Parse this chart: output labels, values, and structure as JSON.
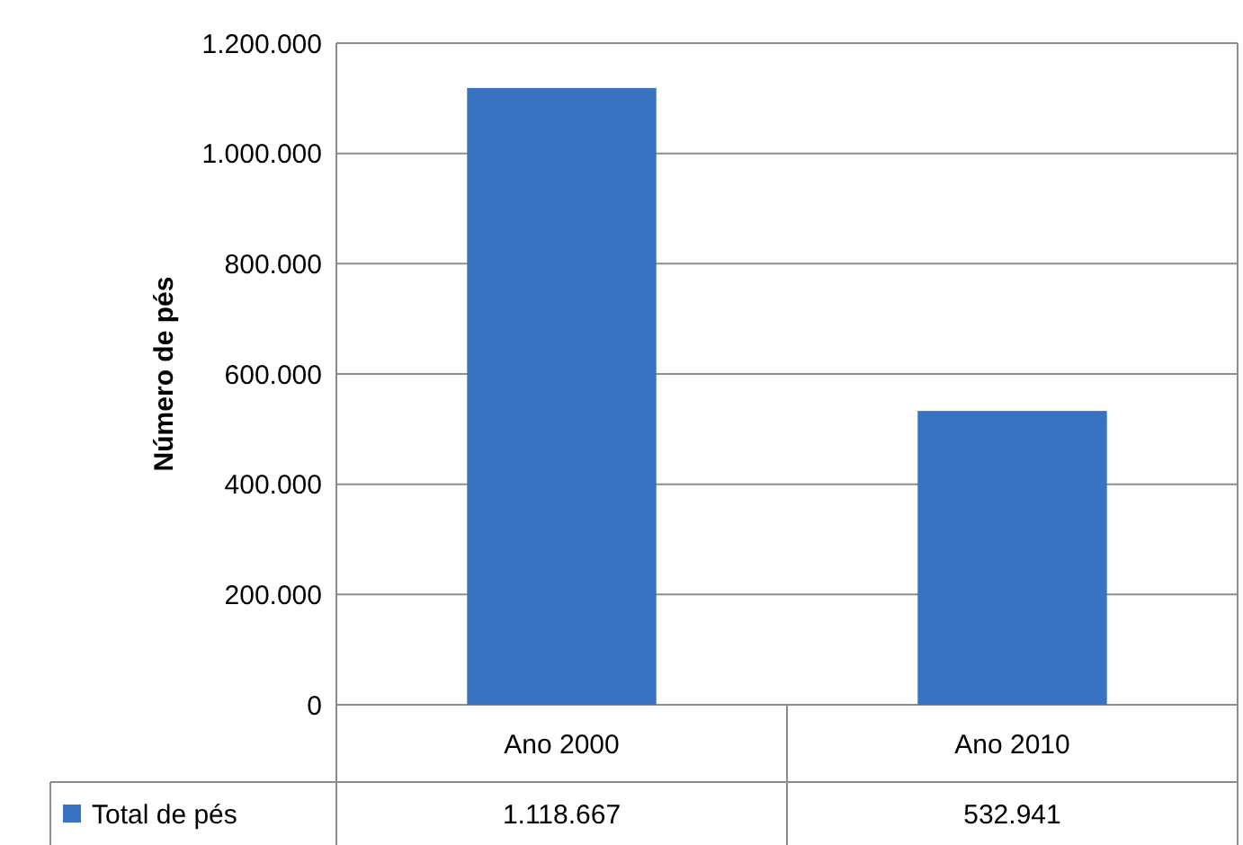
{
  "chart_data": {
    "type": "bar",
    "ylabel": "Número de pés",
    "categories": [
      "Ano 2000",
      "Ano 2010"
    ],
    "series": [
      {
        "name": "Total de pés",
        "color": "#3a72c2",
        "values": [
          1118667,
          532941
        ],
        "value_labels": [
          "1.118.667",
          "532.941"
        ]
      }
    ],
    "ylim": [
      0,
      1200000
    ],
    "yticks": [
      0,
      {
        "value": 200000,
        "label": "200.000"
      },
      {
        "value": 400000,
        "label": "400.000"
      },
      {
        "value": 600000,
        "label": "600.000"
      },
      {
        "value": 800000,
        "label": "800.000"
      },
      {
        "value": 1000000,
        "label": "1.000.000"
      },
      {
        "value": 1200000,
        "label": "1.200.000"
      }
    ],
    "grid": "y"
  }
}
